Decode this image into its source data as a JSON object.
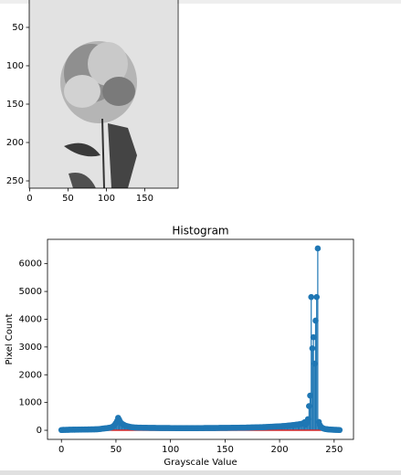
{
  "chart_data": [
    {
      "type": "image",
      "xlim": [
        -0.5,
        193.5
      ],
      "ylim": [
        259.5,
        -0.5
      ],
      "xticks": [
        0,
        50,
        100,
        150
      ],
      "yticks": [
        50,
        100,
        150,
        200,
        250
      ]
    },
    {
      "type": "stem",
      "title": "Histogram",
      "x_label": "Grayscale Value",
      "y_label": "Pixel Count",
      "color": "#1f77b4",
      "baseline_color": "#d62728",
      "xlim": [
        -12.75,
        267.75
      ],
      "ylim": [
        -327.5,
        6877.5
      ],
      "xticks": [
        0,
        50,
        100,
        150,
        200,
        250
      ],
      "yticks": [
        0,
        1000,
        2000,
        3000,
        4000,
        5000,
        6000
      ],
      "values": [
        10,
        12,
        15,
        14,
        16,
        18,
        17,
        20,
        19,
        22,
        21,
        23,
        20,
        24,
        22,
        25,
        24,
        26,
        25,
        27,
        26,
        28,
        27,
        30,
        29,
        31,
        30,
        32,
        31,
        34,
        33,
        35,
        36,
        38,
        40,
        45,
        50,
        55,
        60,
        65,
        70,
        75,
        80,
        85,
        90,
        100,
        110,
        130,
        160,
        200,
        260,
        330,
        450,
        380,
        300,
        250,
        220,
        200,
        180,
        160,
        150,
        140,
        130,
        120,
        115,
        110,
        105,
        100,
        100,
        98,
        96,
        95,
        94,
        93,
        92,
        91,
        90,
        90,
        89,
        88,
        88,
        87,
        87,
        86,
        86,
        85,
        85,
        84,
        84,
        84,
        83,
        83,
        83,
        82,
        82,
        82,
        82,
        81,
        81,
        81,
        80,
        80,
        80,
        80,
        80,
        79,
        79,
        79,
        79,
        79,
        78,
        78,
        78,
        78,
        78,
        78,
        78,
        78,
        78,
        78,
        78,
        78,
        79,
        79,
        79,
        79,
        80,
        80,
        80,
        80,
        80,
        81,
        81,
        81,
        81,
        82,
        82,
        82,
        82,
        83,
        83,
        83,
        84,
        84,
        84,
        85,
        85,
        85,
        86,
        86,
        86,
        87,
        87,
        88,
        88,
        88,
        89,
        89,
        90,
        90,
        91,
        91,
        92,
        92,
        93,
        93,
        94,
        95,
        95,
        96,
        97,
        98,
        99,
        100,
        101,
        102,
        103,
        104,
        105,
        106,
        107,
        108,
        110,
        111,
        112,
        113,
        115,
        116,
        118,
        120,
        122,
        124,
        126,
        128,
        130,
        132,
        134,
        136,
        138,
        140,
        142,
        145,
        148,
        150,
        153,
        156,
        160,
        164,
        168,
        172,
        176,
        180,
        185,
        190,
        195,
        200,
        205,
        210,
        216,
        222,
        230,
        240,
        260,
        290,
        200,
        260,
        400,
        870,
        1250,
        4800,
        2950,
        3350,
        2400,
        3950,
        4800,
        6550,
        300,
        180,
        120,
        90,
        70,
        55,
        45,
        40,
        35,
        30,
        28,
        25,
        22,
        20,
        18,
        16,
        15,
        14,
        12,
        10
      ]
    }
  ]
}
